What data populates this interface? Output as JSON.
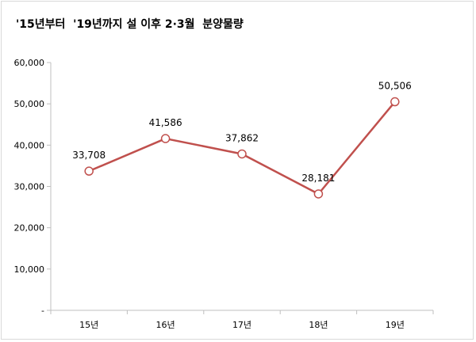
{
  "title": "'15년부터  '19년까지 설 이후 2·3월  분양물량",
  "colors": {
    "line": "#c0504d",
    "marker_fill": "#ffffff",
    "axis": "#bfbfbf"
  },
  "chart_data": {
    "type": "line",
    "title": "'15년부터  '19년까지 설 이후 2·3월  분양물량",
    "categories": [
      "15년",
      "16년",
      "17년",
      "18년",
      "19년"
    ],
    "series": [
      {
        "values": [
          33708,
          41586,
          37862,
          28181,
          50506
        ]
      }
    ],
    "data_labels": [
      "33,708",
      "41,586",
      "37,862",
      "28,181",
      "50,506"
    ],
    "ylim": [
      0,
      60000
    ],
    "yticks": [
      0,
      10000,
      20000,
      30000,
      40000,
      50000,
      60000
    ],
    "ytick_labels": [
      "-",
      "10,000",
      "20,000",
      "30,000",
      "40,000",
      "50,000",
      "60,000"
    ],
    "grid": false,
    "legend": "none",
    "xlabel": "",
    "ylabel": ""
  }
}
